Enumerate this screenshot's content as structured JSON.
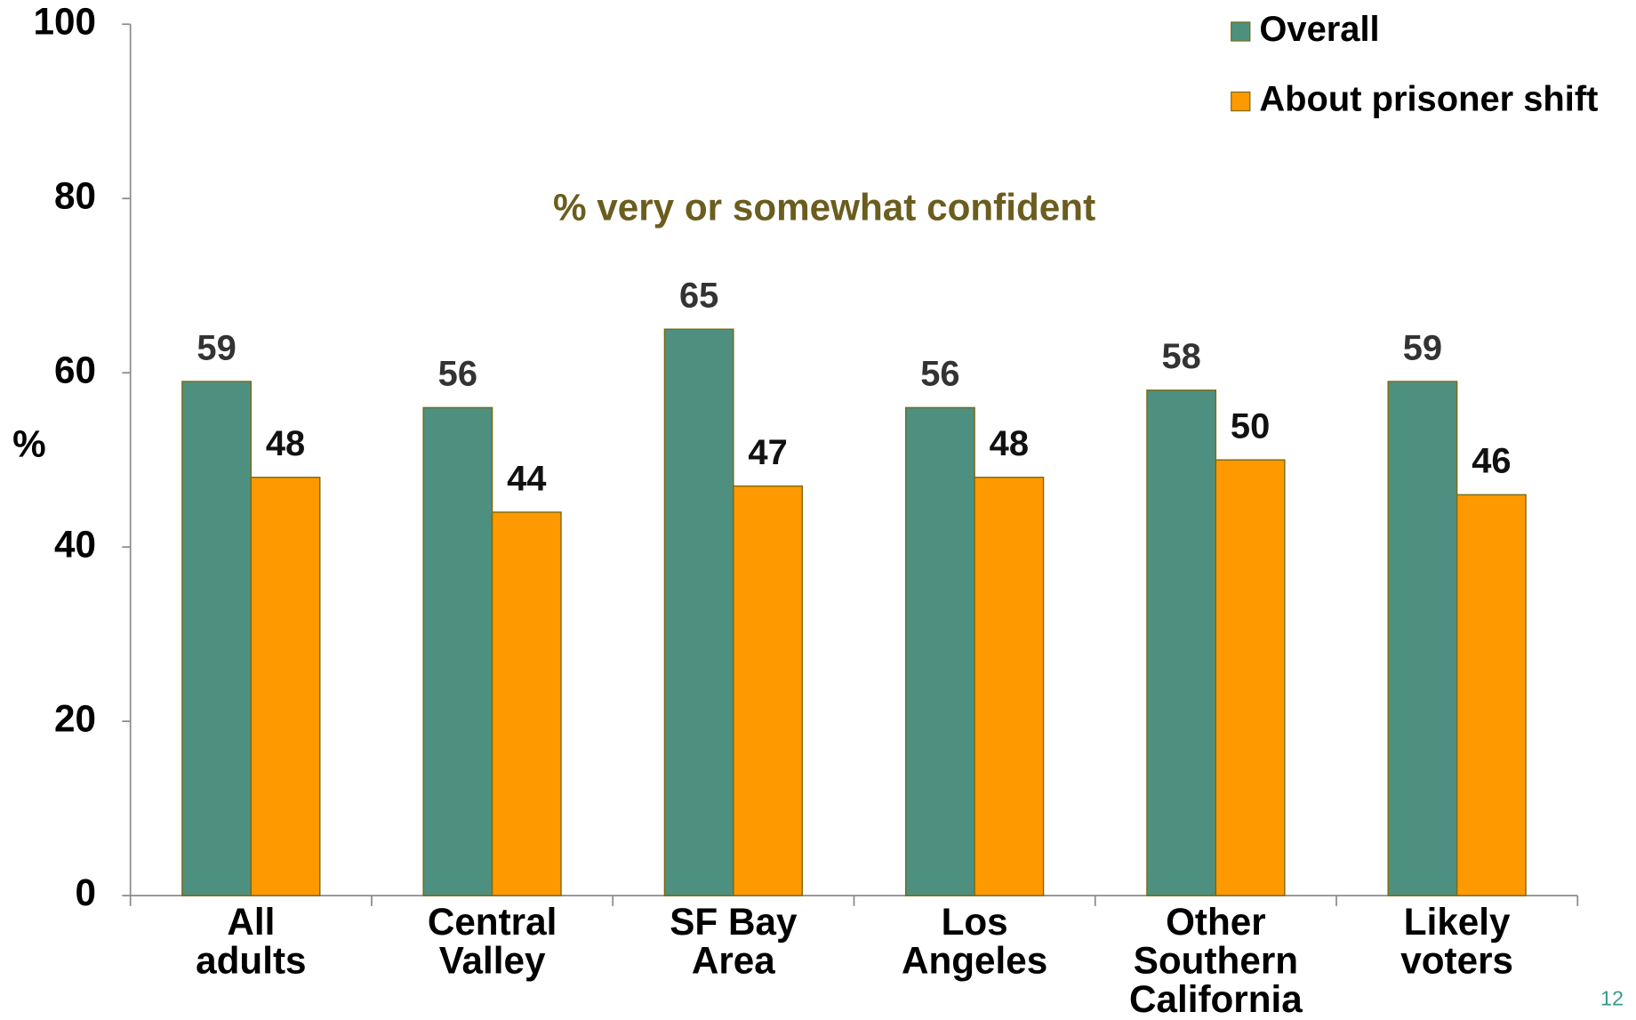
{
  "chart_data": {
    "type": "bar",
    "annotation": "% very or somewhat confident",
    "y_label": "%",
    "page_number": "12",
    "categories": [
      "All\nadults",
      "Central\nValley",
      "SF Bay\nArea",
      "Los\nAngeles",
      "Other\nSouthern\nCalifornia",
      "Likely\nvoters"
    ],
    "series": [
      {
        "name": "Overall",
        "color": "#4e9080",
        "values": [
          59,
          56,
          65,
          56,
          58,
          59
        ]
      },
      {
        "name": "About prisoner shift",
        "color": "#ff9900",
        "values": [
          48,
          44,
          47,
          48,
          50,
          46
        ]
      }
    ],
    "ylim": [
      0,
      100
    ],
    "yticks": [
      0,
      20,
      40,
      60,
      80,
      100
    ],
    "legend": "top-right"
  }
}
